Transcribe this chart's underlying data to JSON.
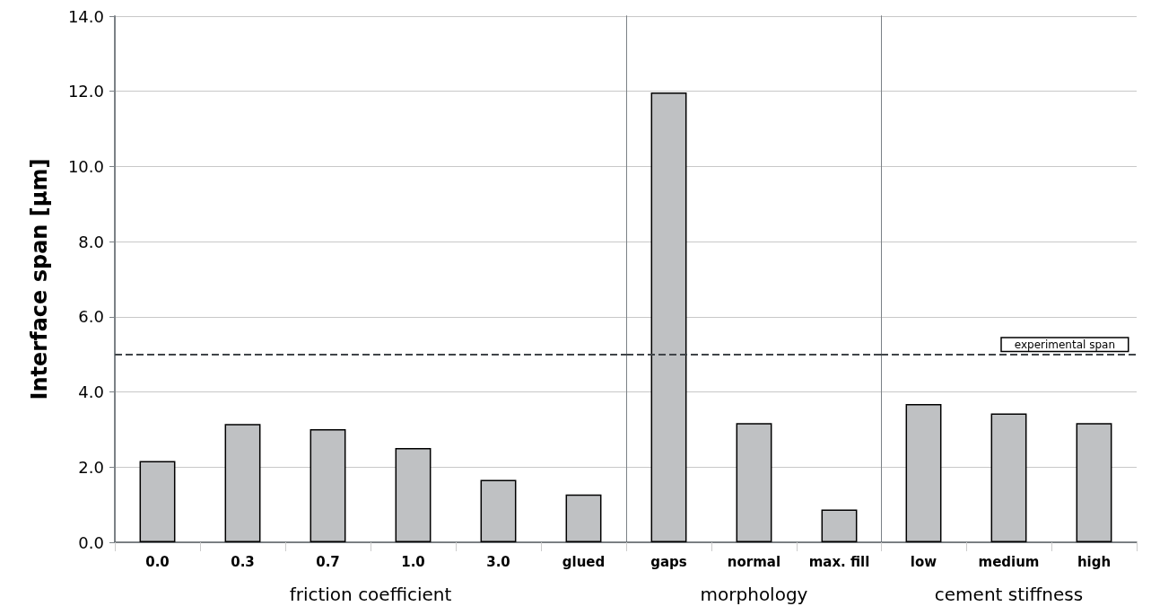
{
  "chart_data": [
    {
      "type": "bar",
      "xlabel": "friction coefficient",
      "ylabel": "Interface span [µm]",
      "categories": [
        "0.0",
        "0.3",
        "0.7",
        "1.0",
        "3.0",
        "glued"
      ],
      "values": [
        2.16,
        3.15,
        3.01,
        2.51,
        1.66,
        1.27
      ],
      "color": "#bfc1c3",
      "ylim": [
        0,
        14
      ],
      "yticks": [
        {
          "value": 0,
          "label": "0.0"
        },
        {
          "value": 2,
          "label": "2.0"
        },
        {
          "value": 4,
          "label": "4.0"
        },
        {
          "value": 6,
          "label": "6.0"
        },
        {
          "value": 8,
          "label": "8.0"
        },
        {
          "value": 10,
          "label": "10.0"
        },
        {
          "value": 12,
          "label": "12.0"
        },
        {
          "value": 14,
          "label": "14.0"
        }
      ],
      "grid": "y",
      "ref_lines": [
        {
          "axis": "y",
          "value": 5,
          "line_style": "dashed",
          "color": "#404549"
        }
      ]
    },
    {
      "type": "bar",
      "xlabel": "morphology",
      "categories": [
        "gaps",
        "normal",
        "max. fill"
      ],
      "values": [
        11.97,
        3.17,
        0.87
      ],
      "color": "#bfc1c3",
      "ylim": [
        0,
        14
      ],
      "yticks": [
        0,
        2,
        4,
        6,
        8,
        10,
        12,
        14
      ],
      "grid": "y",
      "tick_labels": "x",
      "ref_lines": [
        {
          "axis": "y",
          "value": 5,
          "line_style": "dashed",
          "color": "#404549"
        }
      ]
    },
    {
      "type": "bar",
      "xlabel": "cement stiffness",
      "categories": [
        "low",
        "medium",
        "high"
      ],
      "values": [
        3.68,
        3.43,
        3.17
      ],
      "color": "#bfc1c3",
      "ylim": [
        0,
        14
      ],
      "yticks": [
        0,
        2,
        4,
        6,
        8,
        10,
        12,
        14
      ],
      "grid": "y",
      "tick_labels": "x",
      "ref_lines": [
        {
          "axis": "y",
          "value": 5,
          "label": "experimental span",
          "line_style": "dashed",
          "color": "#404549"
        }
      ]
    }
  ]
}
